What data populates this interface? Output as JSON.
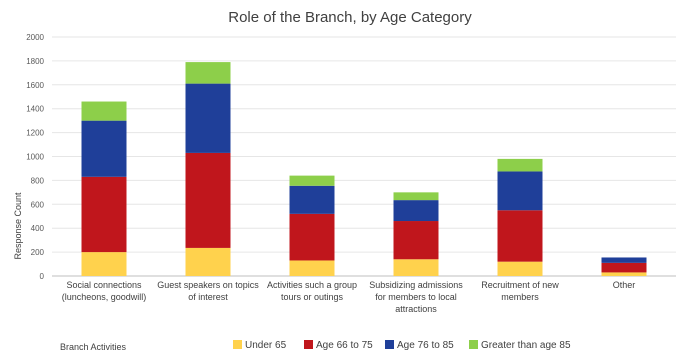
{
  "chart_data": {
    "type": "bar",
    "stacked": true,
    "title": "Role of the Branch, by Age Category",
    "xlabel": "Branch Activities",
    "ylabel": "Response Count",
    "ylim": [
      0,
      2000
    ],
    "ytick_step": 200,
    "grid": true,
    "legend_position": "bottom",
    "categories": [
      [
        "Social connections",
        "(luncheons, goodwill)"
      ],
      [
        "Guest speakers on topics",
        "of interest"
      ],
      [
        "Activities such a group",
        "tours or outings"
      ],
      [
        "Subsidizing admissions",
        "for members to local",
        "attractions"
      ],
      [
        "Recruitment of new",
        "members"
      ],
      [
        "Other"
      ]
    ],
    "series": [
      {
        "name": "Under 65",
        "color": "#FFD24D",
        "values": [
          200,
          235,
          130,
          140,
          120,
          30
        ]
      },
      {
        "name": "Age 66 to 75",
        "color": "#C0161C",
        "values": [
          630,
          795,
          390,
          320,
          430,
          80
        ]
      },
      {
        "name": "Age 76 to 85",
        "color": "#1F3F99",
        "values": [
          470,
          580,
          235,
          175,
          325,
          45
        ]
      },
      {
        "name": "Greater than age 85",
        "color": "#8DCF4A",
        "values": [
          160,
          180,
          85,
          65,
          105,
          0
        ]
      }
    ]
  }
}
